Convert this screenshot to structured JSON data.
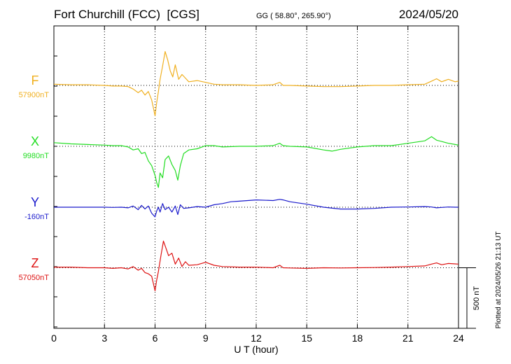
{
  "header": {
    "station": "Fort Churchill (FCC)  [CGS]",
    "coords": "GG ( 58.80°, 265.90°)",
    "date": "2024/05/20"
  },
  "footer": {
    "plotted_at": "Plotted at 2024/05/26 21:13 UT"
  },
  "colors": {
    "F": "#f0b020",
    "X": "#22dd22",
    "Y": "#1a1acc",
    "Z": "#dd1111",
    "frame": "#000000",
    "grid": "#000000"
  },
  "chart_data": {
    "type": "line",
    "title": "Fort Churchill (FCC)  [CGS]",
    "xlabel": "U T (hour)",
    "ylabel": "",
    "xlim": [
      0,
      24
    ],
    "x_ticks": [
      0,
      3,
      6,
      9,
      12,
      15,
      18,
      21,
      24
    ],
    "scale_bar": {
      "value": 500,
      "label": "500 nT"
    },
    "grid": true,
    "series": [
      {
        "name": "F",
        "baseline_label": "57900nT",
        "baseline": 57900,
        "x": [
          0,
          1,
          2,
          3,
          3.5,
          4,
          4.4,
          4.7,
          5.0,
          5.2,
          5.4,
          5.6,
          5.8,
          6.0,
          6.1,
          6.2,
          6.3,
          6.45,
          6.6,
          6.75,
          6.9,
          7.05,
          7.2,
          7.4,
          7.6,
          7.8,
          8.0,
          8.5,
          9.0,
          9.5,
          10,
          11,
          12,
          13,
          13.4,
          13.6,
          14,
          15,
          16,
          17,
          18,
          19,
          20,
          21,
          22,
          22.4,
          22.7,
          23.0,
          23.4,
          23.8,
          24
        ],
        "y": [
          57910,
          57905,
          57905,
          57900,
          57895,
          57895,
          57890,
          57870,
          57840,
          57860,
          57820,
          57850,
          57780,
          57650,
          57760,
          57850,
          57950,
          58060,
          58180,
          58110,
          58020,
          57970,
          58070,
          57950,
          57990,
          57960,
          57930,
          57940,
          57925,
          57910,
          57905,
          57905,
          57900,
          57905,
          57925,
          57900,
          57900,
          57895,
          57890,
          57890,
          57895,
          57900,
          57900,
          57905,
          57910,
          57935,
          57955,
          57930,
          57950,
          57930,
          57935
        ]
      },
      {
        "name": "X",
        "baseline_label": "9980nT",
        "baseline": 9980,
        "x": [
          0,
          1,
          2,
          3,
          3.5,
          4,
          4.4,
          4.7,
          5.0,
          5.2,
          5.4,
          5.6,
          5.8,
          6.0,
          6.1,
          6.2,
          6.3,
          6.45,
          6.6,
          6.8,
          7.0,
          7.2,
          7.35,
          7.5,
          7.7,
          8.0,
          8.5,
          9.0,
          9.5,
          10,
          11,
          12,
          13,
          13.4,
          13.6,
          14,
          15,
          16,
          16.5,
          17,
          18,
          19,
          20,
          21,
          22,
          22.4,
          22.7,
          23.0,
          23.4,
          23.8,
          24
        ],
        "y": [
          10010,
          10000,
          9995,
          9990,
          9985,
          9985,
          9975,
          9950,
          9960,
          9920,
          9930,
          9860,
          9820,
          9740,
          9680,
          9640,
          9760,
          9720,
          9870,
          9900,
          9830,
          9780,
          9700,
          9820,
          9920,
          9950,
          9960,
          9985,
          9985,
          9975,
          9980,
          9980,
          9985,
          10005,
          9985,
          9980,
          9975,
          9950,
          9940,
          9955,
          9975,
          9985,
          9985,
          10005,
          10025,
          10060,
          10030,
          10020,
          10005,
          9995,
          9990
        ]
      },
      {
        "name": "Y",
        "baseline_label": "-160nT",
        "baseline": -160,
        "x": [
          0,
          1,
          2,
          3,
          3.5,
          4,
          4.4,
          4.7,
          5.0,
          5.2,
          5.4,
          5.6,
          5.8,
          6.0,
          6.1,
          6.2,
          6.3,
          6.45,
          6.6,
          6.8,
          7.0,
          7.2,
          7.35,
          7.5,
          7.7,
          8.0,
          8.5,
          9.0,
          9.5,
          10,
          10.5,
          11,
          12,
          13,
          13.4,
          13.6,
          14,
          15,
          16,
          17,
          18,
          19,
          20,
          21,
          22,
          22.4,
          22.7,
          23.0,
          23.4,
          23.8,
          24
        ],
        "y": [
          -160,
          -160,
          -160,
          -160,
          -162,
          -160,
          -165,
          -150,
          -180,
          -145,
          -175,
          -150,
          -210,
          -240,
          -190,
          -160,
          -200,
          -130,
          -180,
          -160,
          -200,
          -150,
          -220,
          -140,
          -170,
          -165,
          -155,
          -160,
          -140,
          -130,
          -115,
          -110,
          -100,
          -105,
          -95,
          -100,
          -115,
          -135,
          -160,
          -175,
          -175,
          -170,
          -160,
          -158,
          -155,
          -158,
          -165,
          -162,
          -158,
          -160,
          -160
        ]
      },
      {
        "name": "Z",
        "baseline_label": "57050nT",
        "baseline": 57050,
        "x": [
          0,
          1,
          2,
          3,
          3.5,
          4,
          4.4,
          4.7,
          5.0,
          5.2,
          5.4,
          5.6,
          5.8,
          6.0,
          6.1,
          6.2,
          6.35,
          6.5,
          6.65,
          6.8,
          7.0,
          7.2,
          7.4,
          7.6,
          7.8,
          8.0,
          8.5,
          9.0,
          9.5,
          10,
          11,
          12,
          13,
          13.4,
          13.6,
          14,
          15,
          16,
          17,
          18,
          19,
          20,
          21,
          22,
          22.4,
          22.7,
          23.0,
          23.4,
          23.8,
          24
        ],
        "y": [
          57055,
          57055,
          57050,
          57050,
          57045,
          57050,
          57040,
          57060,
          57030,
          57045,
          57010,
          57000,
          56980,
          56860,
          56950,
          57020,
          57150,
          57270,
          57210,
          57150,
          57170,
          57080,
          57130,
          57060,
          57100,
          57070,
          57075,
          57095,
          57070,
          57060,
          57055,
          57055,
          57050,
          57070,
          57050,
          57048,
          57045,
          57050,
          57048,
          57050,
          57052,
          57055,
          57060,
          57065,
          57080,
          57090,
          57075,
          57085,
          57082,
          57080
        ]
      }
    ]
  }
}
